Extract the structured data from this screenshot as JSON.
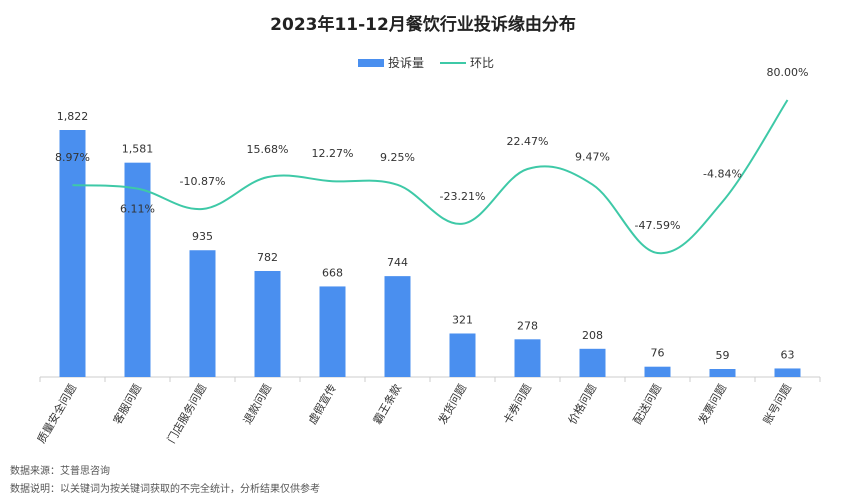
{
  "chart_data": {
    "type": "bar",
    "title": "2023年11-12月餐饮行业投诉缘由分布",
    "categories": [
      "质量安全问题",
      "客服问题",
      "门店服务问题",
      "退款问题",
      "虚假宣传",
      "霸王条款",
      "发货问题",
      "卡券问题",
      "价格问题",
      "配送问题",
      "发票问题",
      "账号问题"
    ],
    "series": [
      {
        "name": "投诉量",
        "type": "bar",
        "color": "#4a8fef",
        "values": [
          1822,
          1581,
          935,
          782,
          668,
          744,
          321,
          278,
          208,
          76,
          59,
          63
        ],
        "labels": [
          "1,822",
          "1,581",
          "935",
          "782",
          "668",
          "744",
          "321",
          "278",
          "208",
          "76",
          "59",
          "63"
        ]
      },
      {
        "name": "环比",
        "type": "line",
        "color": "#3ec9a7",
        "values": [
          8.97,
          6.11,
          -10.87,
          15.68,
          12.27,
          9.25,
          -23.21,
          22.47,
          9.47,
          -47.59,
          -4.84,
          80.0
        ],
        "labels": [
          "8.97%",
          "6.11%",
          "-10.87%",
          "15.68%",
          "12.27%",
          "9.25%",
          "-23.21%",
          "22.47%",
          "9.47%",
          "-47.59%",
          "-4.84%",
          "80.00%"
        ]
      }
    ]
  },
  "footer": {
    "source": "数据来源：艾普思咨询",
    "note": "数据说明：以关键词为按关键词获取的不完全统计，分析结果仅供参考"
  }
}
